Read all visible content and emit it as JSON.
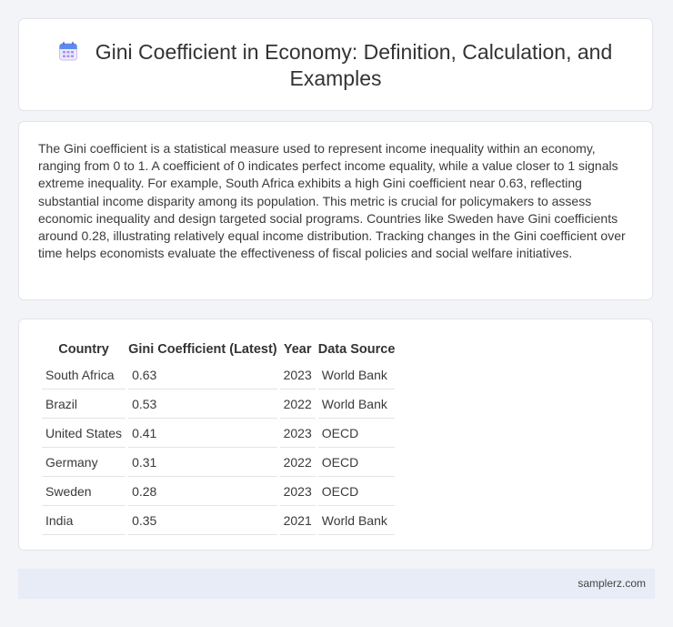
{
  "header": {
    "title": "Gini Coefficient in Economy: Definition, Calculation, and Examples",
    "icon": "calendar-icon"
  },
  "description": "The Gini coefficient is a statistical measure used to represent income inequality within an economy, ranging from 0 to 1. A coefficient of 0 indicates perfect income equality, while a value closer to 1 signals extreme inequality. For example, South Africa exhibits a high Gini coefficient near 0.63, reflecting substantial income disparity among its population. This metric is crucial for policymakers to assess economic inequality and design targeted social programs. Countries like Sweden have Gini coefficients around 0.28, illustrating relatively equal income distribution. Tracking changes in the Gini coefficient over time helps economists evaluate the effectiveness of fiscal policies and social welfare initiatives.",
  "table": {
    "headers": [
      "Country",
      "Gini Coefficient (Latest)",
      "Year",
      "Data Source"
    ],
    "rows": [
      [
        "South Africa",
        "0.63",
        "2023",
        "World Bank"
      ],
      [
        "Brazil",
        "0.53",
        "2022",
        "World Bank"
      ],
      [
        "United States",
        "0.41",
        "2023",
        "OECD"
      ],
      [
        "Germany",
        "0.31",
        "2022",
        "OECD"
      ],
      [
        "Sweden",
        "0.28",
        "2023",
        "OECD"
      ],
      [
        "India",
        "0.35",
        "2021",
        "World Bank"
      ]
    ]
  },
  "footer": {
    "text": "samplerz.com"
  },
  "colors": {
    "icon_blue": "#5b8def",
    "icon_purple": "#9b7fe6",
    "footer_bg": "#e8ecf7"
  }
}
